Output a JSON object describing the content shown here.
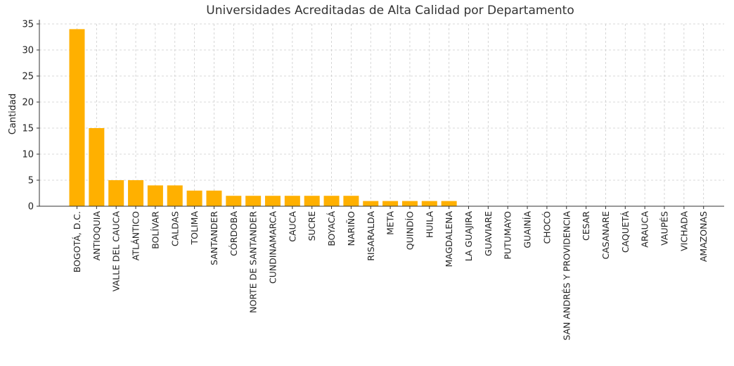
{
  "chart_data": {
    "type": "bar",
    "title": "Universidades Acreditadas de Alta Calidad por Departamento",
    "xlabel": "",
    "ylabel": "Cantidad",
    "ylim": [
      0,
      35
    ],
    "yticks": [
      0,
      5,
      10,
      15,
      20,
      25,
      30,
      35
    ],
    "grid": true,
    "bar_color": "#FFB000",
    "categories": [
      "BOGOTÁ, D.C.",
      "ANTIOQUIA",
      "VALLE DEL CAUCA",
      "ATLÁNTICO",
      "BOLÍVAR",
      "CALDAS",
      "TOLIMA",
      "SANTANDER",
      "CÓRDOBA",
      "NORTE DE SANTANDER",
      "CUNDINAMARCA",
      "CAUCA",
      "SUCRE",
      "BOYACÁ",
      "NARIÑO",
      "RISARALDA",
      "META",
      "QUINDÍO",
      "HUILA",
      "MAGDALENA",
      "LA GUAJIRA",
      "GUAVIARE",
      "PUTUMAYO",
      "GUAINÍA",
      "CHOCÓ",
      "SAN ANDRÉS Y PROVIDENCIA",
      "CESAR",
      "CASANARE",
      "CAQUETÁ",
      "ARAUCA",
      "VAUPÉS",
      "VICHADA",
      "AMAZONAS"
    ],
    "values": [
      34,
      15,
      5,
      5,
      4,
      4,
      3,
      3,
      2,
      2,
      2,
      2,
      2,
      2,
      2,
      1,
      1,
      1,
      1,
      1,
      0,
      0,
      0,
      0,
      0,
      0,
      0,
      0,
      0,
      0,
      0,
      0,
      0
    ]
  }
}
